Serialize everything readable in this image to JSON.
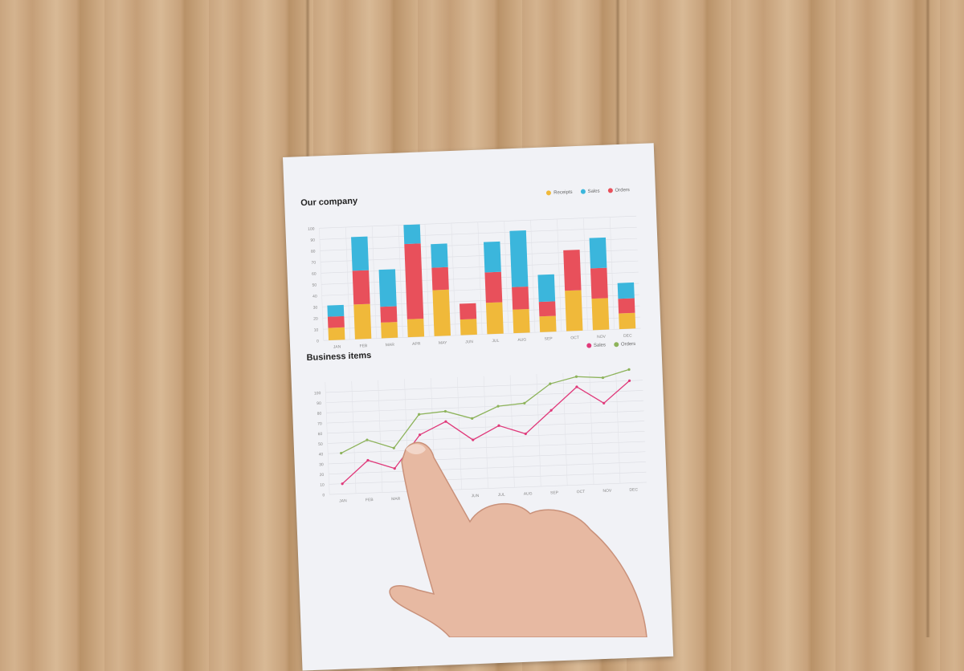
{
  "chart_data": [
    {
      "type": "bar",
      "stacked": true,
      "title": "Our company",
      "categories": [
        "JAN",
        "FEB",
        "MAR",
        "APR",
        "MAY",
        "JUN",
        "JUL",
        "AUG",
        "SEP",
        "OCT",
        "NOV",
        "DEC"
      ],
      "yticks": [
        0,
        10,
        20,
        30,
        40,
        50,
        60,
        70,
        80,
        90,
        100
      ],
      "ylim": [
        0,
        100
      ],
      "grid": true,
      "legend_position": "top-right",
      "series": [
        {
          "name": "Receipts",
          "color": "#f0b93a",
          "values": [
            11,
            31,
            14,
            16,
            41,
            14,
            28,
            21,
            14,
            36,
            28,
            14
          ]
        },
        {
          "name": "Orders",
          "color": "#e8505b",
          "values": [
            10,
            30,
            14,
            67,
            20,
            14,
            27,
            20,
            13,
            36,
            27,
            13
          ]
        },
        {
          "name": "Sales",
          "color": "#3bb6dc",
          "values": [
            10,
            30,
            33,
            17,
            21,
            0,
            27,
            50,
            24,
            0,
            27,
            14
          ]
        }
      ],
      "legend_order": [
        "Receipts",
        "Sales",
        "Orders"
      ]
    },
    {
      "type": "line",
      "title": "Business items",
      "categories": [
        "JAN",
        "FEB",
        "MAR",
        "APR",
        "MAY",
        "JUN",
        "JUL",
        "AUG",
        "SEP",
        "OCT",
        "NOV",
        "DEC"
      ],
      "yticks": [
        0,
        10,
        20,
        30,
        40,
        50,
        60,
        70,
        80,
        90,
        100
      ],
      "ylim": [
        0,
        110
      ],
      "grid": true,
      "legend_position": "top-right",
      "series": [
        {
          "name": "Sales",
          "color": "#e0397a",
          "values": [
            10,
            32,
            23,
            55,
            67,
            48,
            61,
            52,
            74,
            96,
            79,
            100
          ]
        },
        {
          "name": "Orders",
          "color": "#8db35a",
          "values": [
            40,
            52,
            43,
            75,
            77,
            69,
            80,
            82,
            100,
            106,
            104,
            111
          ]
        }
      ]
    }
  ]
}
